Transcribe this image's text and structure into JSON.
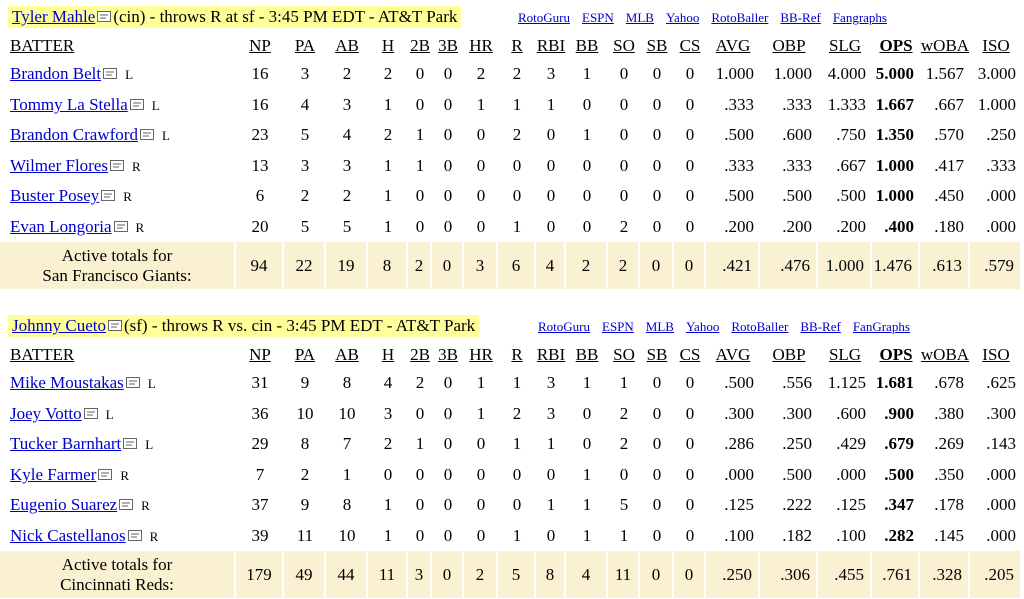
{
  "columns": [
    "BATTER",
    "NP",
    "PA",
    "AB",
    "H",
    "2B",
    "3B",
    "HR",
    "R",
    "RBI",
    "BB",
    "SO",
    "SB",
    "CS",
    "AVG",
    "OBP",
    "SLG",
    "OPS",
    "wOBA",
    "ISO"
  ],
  "matchups": [
    {
      "pitcher": {
        "name": "Tyler Mahle",
        "desc": "(cin) - throws R at sf - 3:45 PM EDT - AT&T Park"
      },
      "links": [
        "RotoGuru",
        "ESPN",
        "MLB",
        "Yahoo",
        "RotoBaller",
        "BB-Ref",
        "Fangraphs"
      ],
      "batters": [
        {
          "name": "Brandon Belt",
          "hand": "L",
          "stats": [
            "16",
            "3",
            "2",
            "2",
            "0",
            "0",
            "2",
            "2",
            "3",
            "1",
            "0",
            "0",
            "0",
            "1.000",
            "1.000",
            "4.000",
            "5.000",
            "1.567",
            "3.000"
          ]
        },
        {
          "name": "Tommy La Stella",
          "hand": "L",
          "stats": [
            "16",
            "4",
            "3",
            "1",
            "0",
            "0",
            "1",
            "1",
            "1",
            "0",
            "0",
            "0",
            "0",
            ".333",
            ".333",
            "1.333",
            "1.667",
            ".667",
            "1.000"
          ]
        },
        {
          "name": "Brandon Crawford",
          "hand": "L",
          "stats": [
            "23",
            "5",
            "4",
            "2",
            "1",
            "0",
            "0",
            "2",
            "0",
            "1",
            "0",
            "0",
            "0",
            ".500",
            ".600",
            ".750",
            "1.350",
            ".570",
            ".250"
          ]
        },
        {
          "name": "Wilmer Flores",
          "hand": "R",
          "stats": [
            "13",
            "3",
            "3",
            "1",
            "1",
            "0",
            "0",
            "0",
            "0",
            "0",
            "0",
            "0",
            "0",
            ".333",
            ".333",
            ".667",
            "1.000",
            ".417",
            ".333"
          ]
        },
        {
          "name": "Buster Posey",
          "hand": "R",
          "stats": [
            "6",
            "2",
            "2",
            "1",
            "0",
            "0",
            "0",
            "0",
            "0",
            "0",
            "0",
            "0",
            "0",
            ".500",
            ".500",
            ".500",
            "1.000",
            ".450",
            ".000"
          ]
        },
        {
          "name": "Evan Longoria",
          "hand": "R",
          "stats": [
            "20",
            "5",
            "5",
            "1",
            "0",
            "0",
            "0",
            "1",
            "0",
            "0",
            "2",
            "0",
            "0",
            ".200",
            ".200",
            ".200",
            ".400",
            ".180",
            ".000"
          ]
        }
      ],
      "totals": {
        "label1": "Active totals for",
        "label2": "San Francisco Giants:",
        "stats": [
          "94",
          "22",
          "19",
          "8",
          "2",
          "0",
          "3",
          "6",
          "4",
          "2",
          "2",
          "0",
          "0",
          ".421",
          ".476",
          "1.000",
          "1.476",
          ".613",
          ".579"
        ]
      }
    },
    {
      "pitcher": {
        "name": "Johnny Cueto",
        "desc": "(sf) - throws R vs. cin - 3:45 PM EDT - AT&T Park"
      },
      "links": [
        "RotoGuru",
        "ESPN",
        "MLB",
        "Yahoo",
        "RotoBaller",
        "BB-Ref",
        "FanGraphs"
      ],
      "batters": [
        {
          "name": "Mike Moustakas",
          "hand": "L",
          "stats": [
            "31",
            "9",
            "8",
            "4",
            "2",
            "0",
            "1",
            "1",
            "3",
            "1",
            "1",
            "0",
            "0",
            ".500",
            ".556",
            "1.125",
            "1.681",
            ".678",
            ".625"
          ]
        },
        {
          "name": "Joey Votto",
          "hand": "L",
          "stats": [
            "36",
            "10",
            "10",
            "3",
            "0",
            "0",
            "1",
            "2",
            "3",
            "0",
            "2",
            "0",
            "0",
            ".300",
            ".300",
            ".600",
            ".900",
            ".380",
            ".300"
          ]
        },
        {
          "name": "Tucker Barnhart",
          "hand": "L",
          "stats": [
            "29",
            "8",
            "7",
            "2",
            "1",
            "0",
            "0",
            "1",
            "1",
            "0",
            "2",
            "0",
            "0",
            ".286",
            ".250",
            ".429",
            ".679",
            ".269",
            ".143"
          ]
        },
        {
          "name": "Kyle Farmer",
          "hand": "R",
          "stats": [
            "7",
            "2",
            "1",
            "0",
            "0",
            "0",
            "0",
            "0",
            "0",
            "1",
            "0",
            "0",
            "0",
            ".000",
            ".500",
            ".000",
            ".500",
            ".350",
            ".000"
          ]
        },
        {
          "name": "Eugenio Suarez",
          "hand": "R",
          "stats": [
            "37",
            "9",
            "8",
            "1",
            "0",
            "0",
            "0",
            "0",
            "1",
            "1",
            "5",
            "0",
            "0",
            ".125",
            ".222",
            ".125",
            ".347",
            ".178",
            ".000"
          ]
        },
        {
          "name": "Nick Castellanos",
          "hand": "R",
          "stats": [
            "39",
            "11",
            "10",
            "1",
            "0",
            "0",
            "0",
            "1",
            "0",
            "1",
            "1",
            "0",
            "0",
            ".100",
            ".182",
            ".100",
            ".282",
            ".145",
            ".000"
          ]
        }
      ],
      "totals": {
        "label1": "Active totals for",
        "label2": "Cincinnati Reds:",
        "stats": [
          "179",
          "49",
          "44",
          "11",
          "3",
          "0",
          "2",
          "5",
          "8",
          "4",
          "11",
          "0",
          "0",
          ".250",
          ".306",
          ".455",
          ".761",
          ".328",
          ".205"
        ]
      }
    }
  ]
}
